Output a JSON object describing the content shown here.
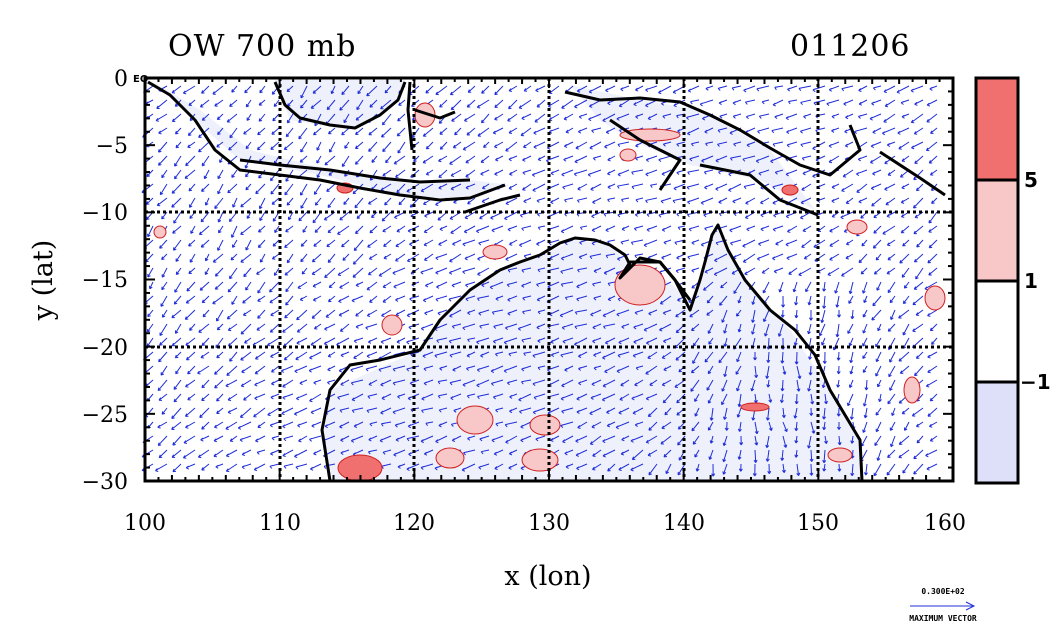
{
  "title": {
    "left": "OW 700 mb",
    "right": "011206"
  },
  "axes": {
    "x": {
      "label": "x (lon)",
      "ticks": [
        "100",
        "110",
        "120",
        "130",
        "140",
        "150",
        "160"
      ]
    },
    "y": {
      "label": "y (lat)",
      "ticks": [
        "0",
        "−5",
        "−10",
        "−15",
        "−20",
        "−25",
        "−30"
      ]
    }
  },
  "equator_label": "EQ",
  "colorbar": {
    "labels": [
      "5",
      "1",
      "−1"
    ],
    "colors": [
      "#f07070",
      "#f8c8c8",
      "#ffffff",
      "#dde0f8"
    ]
  },
  "vector_key": {
    "value": "0.300E+02",
    "label": "MAXIMUM VECTOR"
  },
  "chart_data": {
    "type": "map",
    "variable": "OW",
    "level": "700 mb",
    "date": "011206",
    "xlim": [
      100,
      160
    ],
    "ylim": [
      -30,
      0
    ],
    "xlabel": "x (lon)",
    "ylabel": "y (lat)",
    "contour_levels": [
      -1,
      1,
      5
    ],
    "grid_lon": [
      110,
      120,
      130,
      140,
      150
    ],
    "grid_lat": [
      -10,
      -20
    ]
  }
}
